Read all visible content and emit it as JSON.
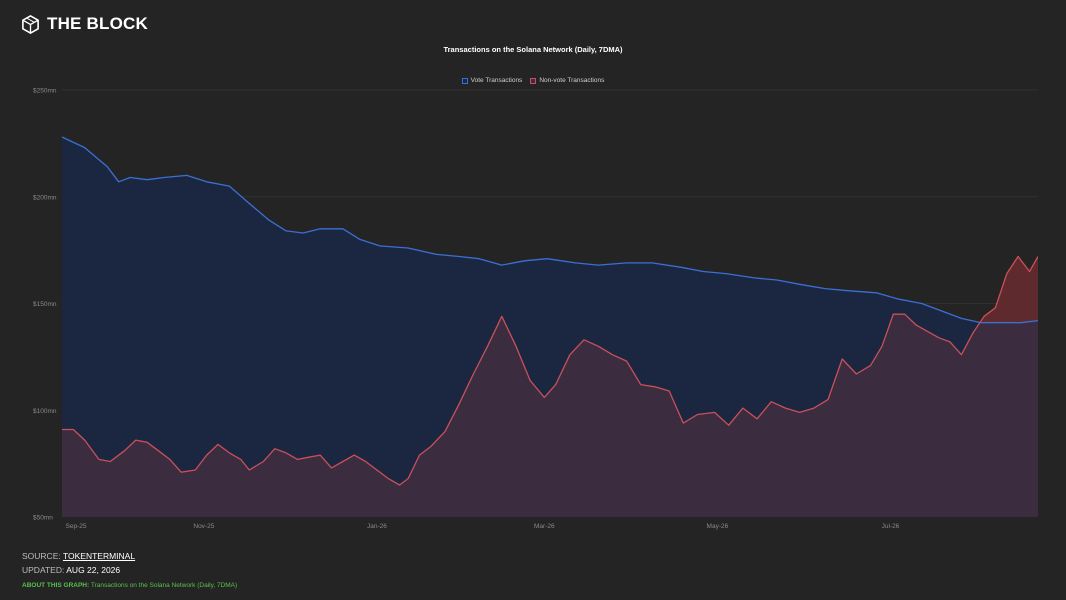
{
  "brand": {
    "name": "THE BLOCK",
    "logo_icon": "cube-logo-icon"
  },
  "footer": {
    "source_label": "SOURCE:",
    "source_value": "TOKENTERMINAL",
    "updated_label": "UPDATED:",
    "updated_value": "AUG 22, 2026",
    "about_label": "ABOUT THIS GRAPH:",
    "about_value": "Transactions on the Solana Network (Daily, 7DMA)"
  },
  "chart_data": {
    "type": "area",
    "title": "Transactions on the Solana Network (Daily, 7DMA)",
    "legend_position": "top-center",
    "grid": true,
    "x_range": [
      "2025-09-12",
      "2026-08-22"
    ],
    "ylim": [
      50,
      250
    ],
    "y_ticks": [
      {
        "value": 50,
        "label": "$50mn"
      },
      {
        "value": 100,
        "label": "$100mn"
      },
      {
        "value": 150,
        "label": "$150mn"
      },
      {
        "value": 200,
        "label": "$200mn"
      },
      {
        "value": 250,
        "label": "$250mn"
      }
    ],
    "x_ticks": [
      {
        "date": "2025-09-01",
        "label": "Sep-25"
      },
      {
        "date": "2025-11-01",
        "label": "Nov-25"
      },
      {
        "date": "2026-01-01",
        "label": "Jan-26"
      },
      {
        "date": "2026-03-01",
        "label": "Mar-26"
      },
      {
        "date": "2026-05-01",
        "label": "May-26"
      },
      {
        "date": "2026-07-01",
        "label": "Jul-26"
      }
    ],
    "series": [
      {
        "name": "Vote Transactions",
        "color": "#3b6fd4",
        "fill": "#1b2740",
        "points": [
          [
            "2025-09-12",
            228
          ],
          [
            "2025-09-20",
            223
          ],
          [
            "2025-09-28",
            214
          ],
          [
            "2025-10-02",
            207
          ],
          [
            "2025-10-06",
            209
          ],
          [
            "2025-10-12",
            208
          ],
          [
            "2025-10-18",
            209
          ],
          [
            "2025-10-26",
            210
          ],
          [
            "2025-11-02",
            207
          ],
          [
            "2025-11-10",
            205
          ],
          [
            "2025-11-16",
            198
          ],
          [
            "2025-11-24",
            189
          ],
          [
            "2025-11-30",
            184
          ],
          [
            "2025-12-06",
            183
          ],
          [
            "2025-12-12",
            185
          ],
          [
            "2025-12-20",
            185
          ],
          [
            "2025-12-26",
            180
          ],
          [
            "2026-01-02",
            177
          ],
          [
            "2026-01-12",
            176
          ],
          [
            "2026-01-22",
            173
          ],
          [
            "2026-01-30",
            172
          ],
          [
            "2026-02-06",
            171
          ],
          [
            "2026-02-14",
            168
          ],
          [
            "2026-02-22",
            170
          ],
          [
            "2026-03-02",
            171
          ],
          [
            "2026-03-12",
            169
          ],
          [
            "2026-03-20",
            168
          ],
          [
            "2026-03-30",
            169
          ],
          [
            "2026-04-08",
            169
          ],
          [
            "2026-04-18",
            167
          ],
          [
            "2026-04-26",
            165
          ],
          [
            "2026-05-04",
            164
          ],
          [
            "2026-05-14",
            162
          ],
          [
            "2026-05-22",
            161
          ],
          [
            "2026-05-30",
            159
          ],
          [
            "2026-06-08",
            157
          ],
          [
            "2026-06-16",
            156
          ],
          [
            "2026-06-26",
            155
          ],
          [
            "2026-07-04",
            152
          ],
          [
            "2026-07-12",
            150
          ],
          [
            "2026-07-20",
            146
          ],
          [
            "2026-07-26",
            143
          ],
          [
            "2026-08-02",
            141
          ],
          [
            "2026-08-10",
            141
          ],
          [
            "2026-08-16",
            141
          ],
          [
            "2026-08-22",
            142
          ]
        ]
      },
      {
        "name": "Non-vote Transactions",
        "color": "#c9505a",
        "fill": "#3b2c3f",
        "fill_above": "#5e2a2e",
        "points": [
          [
            "2025-09-12",
            91
          ],
          [
            "2025-09-16",
            91
          ],
          [
            "2025-09-20",
            86
          ],
          [
            "2025-09-25",
            77
          ],
          [
            "2025-09-29",
            76
          ],
          [
            "2025-10-04",
            81
          ],
          [
            "2025-10-08",
            86
          ],
          [
            "2025-10-12",
            85
          ],
          [
            "2025-10-16",
            81
          ],
          [
            "2025-10-20",
            77
          ],
          [
            "2025-10-24",
            71
          ],
          [
            "2025-10-29",
            72
          ],
          [
            "2025-11-02",
            79
          ],
          [
            "2025-11-06",
            84
          ],
          [
            "2025-11-10",
            80
          ],
          [
            "2025-11-14",
            77
          ],
          [
            "2025-11-17",
            72
          ],
          [
            "2025-11-22",
            76
          ],
          [
            "2025-11-26",
            82
          ],
          [
            "2025-11-30",
            80
          ],
          [
            "2025-12-04",
            77
          ],
          [
            "2025-12-08",
            78
          ],
          [
            "2025-12-12",
            79
          ],
          [
            "2025-12-16",
            73
          ],
          [
            "2025-12-20",
            76
          ],
          [
            "2025-12-24",
            79
          ],
          [
            "2025-12-28",
            76
          ],
          [
            "2026-01-01",
            72
          ],
          [
            "2026-01-05",
            68
          ],
          [
            "2026-01-09",
            65
          ],
          [
            "2026-01-12",
            68
          ],
          [
            "2026-01-16",
            79
          ],
          [
            "2026-01-20",
            83
          ],
          [
            "2026-01-25",
            90
          ],
          [
            "2026-01-30",
            103
          ],
          [
            "2026-02-04",
            117
          ],
          [
            "2026-02-09",
            130
          ],
          [
            "2026-02-14",
            144
          ],
          [
            "2026-02-19",
            130
          ],
          [
            "2026-02-24",
            114
          ],
          [
            "2026-03-01",
            106
          ],
          [
            "2026-03-05",
            112
          ],
          [
            "2026-03-10",
            126
          ],
          [
            "2026-03-15",
            133
          ],
          [
            "2026-03-20",
            130
          ],
          [
            "2026-03-25",
            126
          ],
          [
            "2026-03-30",
            123
          ],
          [
            "2026-04-04",
            112
          ],
          [
            "2026-04-09",
            111
          ],
          [
            "2026-04-14",
            109
          ],
          [
            "2026-04-19",
            94
          ],
          [
            "2026-04-24",
            98
          ],
          [
            "2026-04-30",
            99
          ],
          [
            "2026-05-05",
            93
          ],
          [
            "2026-05-10",
            101
          ],
          [
            "2026-05-15",
            96
          ],
          [
            "2026-05-20",
            104
          ],
          [
            "2026-05-25",
            101
          ],
          [
            "2026-05-30",
            99
          ],
          [
            "2026-06-04",
            101
          ],
          [
            "2026-06-09",
            105
          ],
          [
            "2026-06-14",
            124
          ],
          [
            "2026-06-19",
            117
          ],
          [
            "2026-06-24",
            121
          ],
          [
            "2026-06-28",
            130
          ],
          [
            "2026-07-02",
            145
          ],
          [
            "2026-07-06",
            145
          ],
          [
            "2026-07-10",
            140
          ],
          [
            "2026-07-14",
            137
          ],
          [
            "2026-07-18",
            134
          ],
          [
            "2026-07-22",
            132
          ],
          [
            "2026-07-26",
            126
          ],
          [
            "2026-07-30",
            136
          ],
          [
            "2026-08-03",
            144
          ],
          [
            "2026-08-07",
            148
          ],
          [
            "2026-08-11",
            164
          ],
          [
            "2026-08-15",
            172
          ],
          [
            "2026-08-19",
            165
          ],
          [
            "2026-08-22",
            172
          ]
        ]
      }
    ]
  }
}
